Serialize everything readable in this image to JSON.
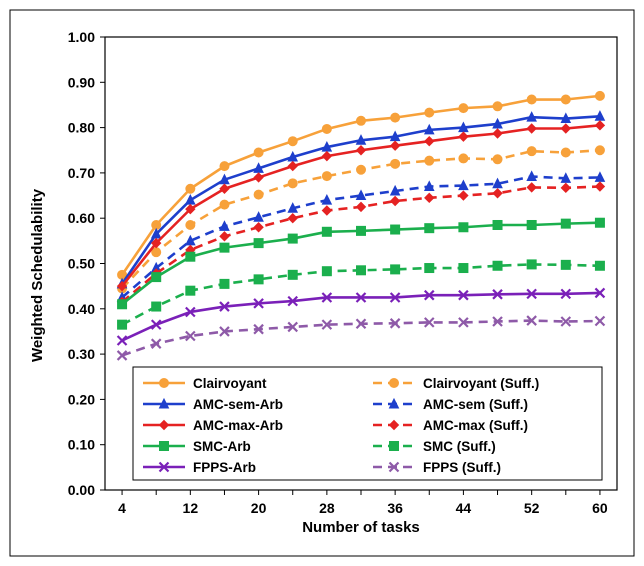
{
  "chart_data": {
    "type": "line",
    "title": "",
    "xlabel": "Number of tasks",
    "ylabel": "Weighted Schedulability",
    "x": [
      4,
      8,
      12,
      16,
      20,
      24,
      28,
      32,
      36,
      40,
      44,
      48,
      52,
      56,
      60
    ],
    "x_ticks": [
      "4",
      "12",
      "20",
      "28",
      "36",
      "44",
      "52",
      "60"
    ],
    "xlim": [
      2,
      62
    ],
    "ylim": [
      0.0,
      1.0
    ],
    "y_ticks": [
      "0.00",
      "0.10",
      "0.20",
      "0.30",
      "0.40",
      "0.50",
      "0.60",
      "0.70",
      "0.80",
      "0.90",
      "1.00"
    ],
    "grid": false,
    "legend_position": "bottom",
    "series": [
      {
        "name": "Clairvoyant",
        "color": "#F7A13A",
        "marker": "circle",
        "dash": false,
        "values": [
          0.475,
          0.585,
          0.665,
          0.715,
          0.745,
          0.77,
          0.797,
          0.815,
          0.822,
          0.833,
          0.843,
          0.847,
          0.862,
          0.862,
          0.87
        ]
      },
      {
        "name": "Clairvoyant (Suff.)",
        "color": "#F7A13A",
        "marker": "circle",
        "dash": true,
        "values": [
          0.445,
          0.525,
          0.585,
          0.63,
          0.652,
          0.677,
          0.693,
          0.707,
          0.72,
          0.727,
          0.732,
          0.73,
          0.748,
          0.745,
          0.75
        ]
      },
      {
        "name": "AMC-sem-Arb",
        "color": "#1E3FCC",
        "marker": "triangle",
        "dash": false,
        "values": [
          0.455,
          0.565,
          0.64,
          0.685,
          0.71,
          0.735,
          0.757,
          0.772,
          0.78,
          0.795,
          0.8,
          0.808,
          0.823,
          0.82,
          0.825
        ]
      },
      {
        "name": "AMC-sem (Suff.)",
        "color": "#1E3FCC",
        "marker": "triangle",
        "dash": true,
        "values": [
          0.425,
          0.49,
          0.55,
          0.582,
          0.602,
          0.622,
          0.64,
          0.65,
          0.66,
          0.67,
          0.672,
          0.676,
          0.692,
          0.688,
          0.69
        ]
      },
      {
        "name": "AMC-max-Arb",
        "color": "#E52222",
        "marker": "diamond",
        "dash": false,
        "values": [
          0.45,
          0.545,
          0.62,
          0.665,
          0.69,
          0.715,
          0.737,
          0.75,
          0.76,
          0.77,
          0.78,
          0.787,
          0.798,
          0.798,
          0.805
        ]
      },
      {
        "name": "AMC-max (Suff.)",
        "color": "#E52222",
        "marker": "diamond",
        "dash": true,
        "values": [
          0.415,
          0.478,
          0.53,
          0.56,
          0.58,
          0.6,
          0.617,
          0.625,
          0.638,
          0.645,
          0.65,
          0.655,
          0.668,
          0.667,
          0.67
        ]
      },
      {
        "name": "SMC-Arb",
        "color": "#1BAF4D",
        "marker": "square",
        "dash": false,
        "values": [
          0.41,
          0.47,
          0.515,
          0.535,
          0.545,
          0.555,
          0.57,
          0.572,
          0.575,
          0.578,
          0.58,
          0.585,
          0.585,
          0.588,
          0.59
        ]
      },
      {
        "name": "SMC (Suff.)",
        "color": "#1BAF4D",
        "marker": "square",
        "dash": true,
        "values": [
          0.365,
          0.405,
          0.44,
          0.455,
          0.465,
          0.475,
          0.483,
          0.485,
          0.487,
          0.49,
          0.49,
          0.495,
          0.498,
          0.497,
          0.495
        ]
      },
      {
        "name": "FPPS-Arb",
        "color": "#7A20B8",
        "marker": "x",
        "dash": false,
        "values": [
          0.33,
          0.365,
          0.393,
          0.405,
          0.412,
          0.417,
          0.425,
          0.425,
          0.425,
          0.43,
          0.43,
          0.432,
          0.433,
          0.433,
          0.435
        ]
      },
      {
        "name": "FPPS (Suff.)",
        "color": "#8E5AA8",
        "marker": "x",
        "dash": true,
        "values": [
          0.297,
          0.323,
          0.34,
          0.35,
          0.355,
          0.36,
          0.365,
          0.367,
          0.368,
          0.37,
          0.37,
          0.372,
          0.374,
          0.372,
          0.373
        ]
      }
    ]
  }
}
